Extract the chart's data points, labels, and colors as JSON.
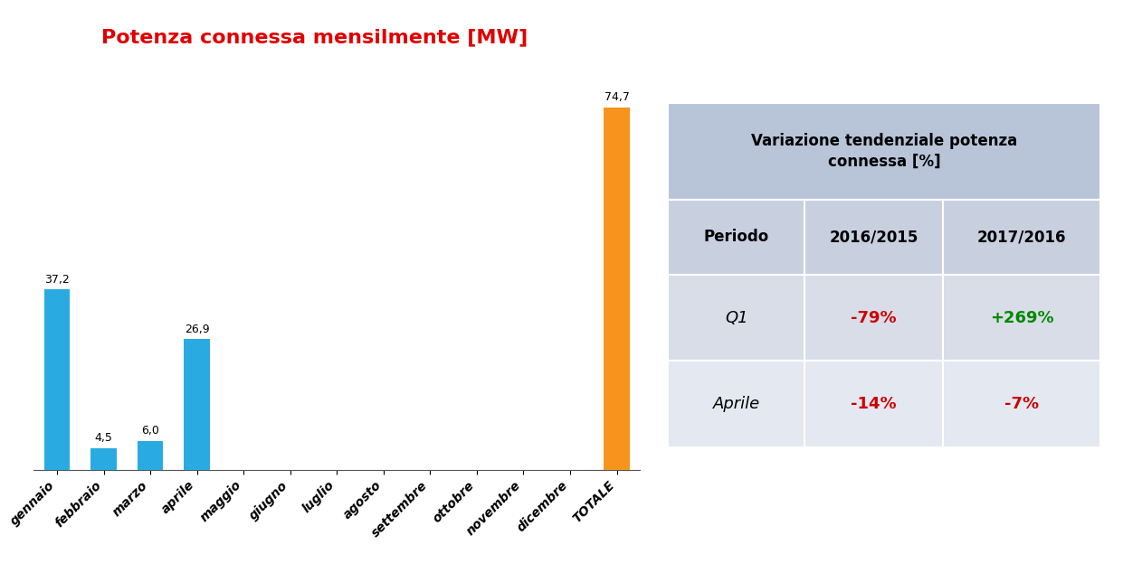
{
  "title": "Potenza connessa mensilmente [MW]",
  "title_color": "#e00000",
  "categories": [
    "gennaio",
    "febbraio",
    "marzo",
    "aprile",
    "maggio",
    "giugno",
    "luglio",
    "agosto",
    "settembre",
    "ottobre",
    "novembre",
    "dicembre",
    "TOTALE"
  ],
  "values": [
    37.2,
    4.5,
    6.0,
    26.9,
    0,
    0,
    0,
    0,
    0,
    0,
    0,
    0,
    74.7
  ],
  "bar_colors": [
    "#29ABE2",
    "#29ABE2",
    "#29ABE2",
    "#29ABE2",
    "#29ABE2",
    "#29ABE2",
    "#29ABE2",
    "#29ABE2",
    "#29ABE2",
    "#29ABE2",
    "#29ABE2",
    "#29ABE2",
    "#F7941D"
  ],
  "bar_labels": [
    "37,2",
    "4,5",
    "6,0",
    "26,9",
    "",
    "",
    "",
    "",
    "",
    "",
    "",
    "",
    "74,7"
  ],
  "table_title": "Variazione tendenziale potenza\nconnessa [%]",
  "table_header": [
    "Periodo",
    "2016/2015",
    "2017/2016"
  ],
  "table_rows": [
    [
      "Q1",
      "-79%",
      "+269%"
    ],
    [
      "Aprile",
      "-14%",
      "-7%"
    ]
  ],
  "table_colors_row1": [
    "black",
    "#cc0000",
    "#008800"
  ],
  "table_colors_row2": [
    "black",
    "#cc0000",
    "#cc0000"
  ],
  "table_bg_title": "#b8c4d8",
  "table_bg_header": "#c8d0e0",
  "table_bg_row1": "#d8dde8",
  "table_bg_row2": "#e4e8f0",
  "bg_color": "#ffffff",
  "ylim": [
    0,
    85
  ],
  "bar_label_fontsize": 9,
  "tick_fontsize": 10,
  "title_fontsize": 16,
  "table_title_fontsize": 12,
  "table_header_fontsize": 12,
  "table_data_fontsize": 13
}
